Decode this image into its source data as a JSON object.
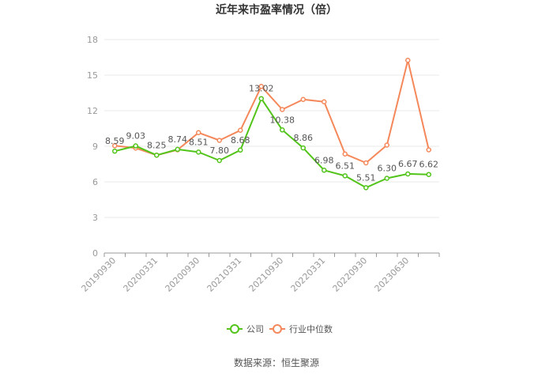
{
  "chart_data": {
    "type": "line",
    "title": "近年来市盈率情况（倍）",
    "xlabel": "",
    "ylabel": "",
    "ylim": [
      0,
      18
    ],
    "yticks": [
      0,
      3,
      6,
      9,
      12,
      15,
      18
    ],
    "grid": true,
    "legend_position": "bottom",
    "x_tick_labels": [
      "20190930",
      "20200331",
      "20200930",
      "20210331",
      "20210930",
      "20220331",
      "20220930",
      "20230630"
    ],
    "points_count": 16,
    "series": [
      {
        "name": "公司",
        "color": "#52c41a",
        "values": [
          8.59,
          9.03,
          8.25,
          8.74,
          8.51,
          7.8,
          8.68,
          13.02,
          10.38,
          8.86,
          6.98,
          6.51,
          5.51,
          6.3,
          6.67,
          6.62
        ]
      },
      {
        "name": "行业中位数",
        "color": "#f5885a",
        "values": [
          9.05,
          8.85,
          8.25,
          8.7,
          10.15,
          9.5,
          10.35,
          14.05,
          12.1,
          12.95,
          12.75,
          8.35,
          7.6,
          9.1,
          16.25,
          8.7
        ]
      }
    ]
  },
  "source": "数据来源：恒生聚源"
}
